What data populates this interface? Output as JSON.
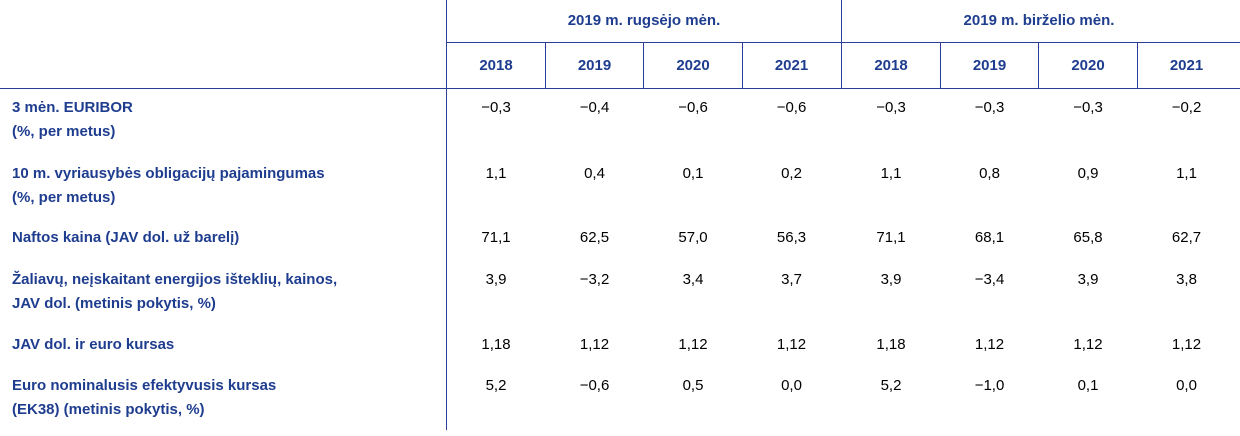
{
  "table": {
    "groups": [
      "2019 m. rugsėjo mėn.",
      "2019 m. birželio mėn."
    ],
    "years": [
      "2018",
      "2019",
      "2020",
      "2021",
      "2018",
      "2019",
      "2020",
      "2021"
    ],
    "rows": [
      {
        "label": "3 mėn. EURIBOR\n(%, per metus)",
        "values": [
          "−0,3",
          "−0,4",
          "−0,6",
          "−0,6",
          "−0,3",
          "−0,3",
          "−0,3",
          "−0,2"
        ]
      },
      {
        "label": "10 m. vyriausybės obligacijų pajamingumas\n(%, per metus)",
        "values": [
          "1,1",
          "0,4",
          "0,1",
          "0,2",
          "1,1",
          "0,8",
          "0,9",
          "1,1"
        ]
      },
      {
        "label": "Naftos kaina (JAV dol. už barelį)",
        "values": [
          "71,1",
          "62,5",
          "57,0",
          "56,3",
          "71,1",
          "68,1",
          "65,8",
          "62,7"
        ]
      },
      {
        "label": "Žaliavų, neįskaitant energijos išteklių, kainos,\nJAV dol. (metinis pokytis, %)",
        "values": [
          "3,9",
          "−3,2",
          "3,4",
          "3,7",
          "3,9",
          "−3,4",
          "3,9",
          "3,8"
        ]
      },
      {
        "label": "JAV dol. ir euro kursas",
        "values": [
          "1,18",
          "1,12",
          "1,12",
          "1,12",
          "1,18",
          "1,12",
          "1,12",
          "1,12"
        ]
      },
      {
        "label": "Euro nominalusis efektyvusis kursas\n(EK38) (metinis pokytis, %)",
        "values": [
          "5,2",
          "−0,6",
          "0,5",
          "0,0",
          "5,2",
          "−1,0",
          "0,1",
          "0,0"
        ]
      }
    ]
  }
}
